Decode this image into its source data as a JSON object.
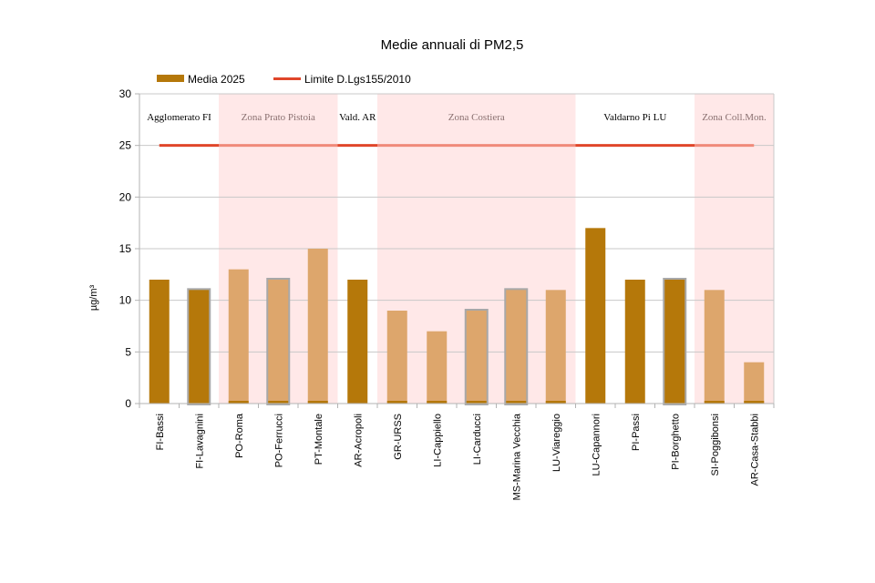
{
  "chart_data": {
    "type": "bar",
    "title": "Medie annuali di PM2,5",
    "ylabel": "µg/m³",
    "xlabel": "",
    "ylim": [
      0,
      30
    ],
    "yticks": [
      0,
      5,
      10,
      15,
      20,
      25,
      30
    ],
    "grid": true,
    "legend_placement": "top-left",
    "series": [
      {
        "name": "Media  2025",
        "type": "bar",
        "color": "#b5780a"
      },
      {
        "name": "Limite D.Lgs155/2010",
        "type": "line",
        "value": 25,
        "color": "#e0462a"
      }
    ],
    "categories": [
      "FI-Bassi",
      "FI-Lavagnini",
      "PO-Roma",
      "PO-Ferrucci",
      "PT-Montale",
      "AR-Acropoli",
      "GR-URSS",
      "LI-Cappiello",
      "LI-Carducci",
      "MS-Marina Vecchia",
      "LU-Viareggio",
      "LU-Capannori",
      "PI-Passi",
      "PI-Borghetto",
      "SI-Poggibonsi",
      "AR-Casa-Stabbi"
    ],
    "values": [
      12,
      11,
      13,
      12,
      15,
      12,
      9,
      7,
      9,
      11,
      11,
      17,
      12,
      12,
      11,
      4
    ],
    "outlined": [
      false,
      true,
      false,
      true,
      false,
      false,
      false,
      false,
      true,
      true,
      false,
      false,
      false,
      true,
      false,
      false
    ],
    "zones": [
      {
        "label": "Agglomerato FI",
        "from": 0,
        "to": 1,
        "shaded": false
      },
      {
        "label": "Zona Prato Pistoia",
        "from": 2,
        "to": 4,
        "shaded": true
      },
      {
        "label": "Vald. AR",
        "from": 5,
        "to": 5,
        "shaded": false
      },
      {
        "label": "Zona Costiera",
        "from": 6,
        "to": 10,
        "shaded": true
      },
      {
        "label": "Valdarno Pi LU",
        "from": 11,
        "to": 13,
        "shaded": false
      },
      {
        "label": "Zona Coll.Mon.",
        "from": 14,
        "to": 15,
        "shaded": true
      }
    ],
    "colors": {
      "bar_dark": "#b5780a",
      "bar_light": "#dda66c",
      "zone_fill": "#ffe8e8",
      "zone_text_light": "#8a7070",
      "limit_line": "#e0462a",
      "limit_line_light": "#f08a7a",
      "outline": "#a8a8a8"
    }
  }
}
